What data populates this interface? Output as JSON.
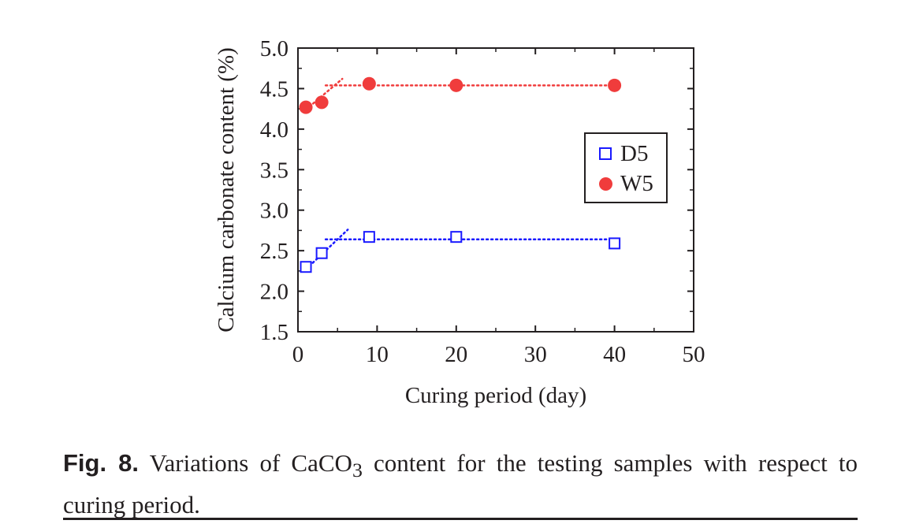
{
  "chart_data": {
    "type": "scatter",
    "xlabel": "Curing period (day)",
    "ylabel": "Calcium carbonate content (%)",
    "xlim": [
      0,
      50
    ],
    "ylim": [
      1.5,
      5.0
    ],
    "xticks": [
      0,
      10,
      20,
      30,
      40,
      50
    ],
    "yticks": [
      1.5,
      2.0,
      2.5,
      3.0,
      3.5,
      4.0,
      4.5,
      5.0
    ],
    "xtick_labels": [
      "0",
      "10",
      "20",
      "30",
      "40",
      "50"
    ],
    "ytick_labels": [
      "1.5",
      "2.0",
      "2.5",
      "3.0",
      "3.5",
      "4.0",
      "4.5",
      "5.0"
    ],
    "grid": false,
    "legend_position": "right",
    "series": [
      {
        "name": "D5",
        "marker": "open-square",
        "color": "#1a1aff",
        "x": [
          1,
          3,
          9,
          20,
          40
        ],
        "y": [
          2.3,
          2.47,
          2.67,
          2.67,
          2.59
        ],
        "trend_lines": [
          {
            "x": [
              1,
              6.3
            ],
            "y": [
              2.27,
              2.76
            ]
          },
          {
            "x": [
              3.5,
              40
            ],
            "y": [
              2.64,
              2.64
            ]
          }
        ]
      },
      {
        "name": "W5",
        "marker": "filled-circle",
        "color": "#f03c3c",
        "x": [
          1,
          3,
          9,
          20,
          40
        ],
        "y": [
          4.27,
          4.33,
          4.56,
          4.54,
          4.54
        ],
        "trend_lines": [
          {
            "x": [
              1,
              5.6
            ],
            "y": [
              4.24,
              4.62
            ]
          },
          {
            "x": [
              3.5,
              40
            ],
            "y": [
              4.54,
              4.54
            ]
          }
        ]
      }
    ]
  },
  "caption": {
    "label": "Fig. 8.",
    "text_before_sub": " Variations of CaCO",
    "subscript": "3",
    "text_after_sub": " content for the testing samples with respect to curing period."
  }
}
